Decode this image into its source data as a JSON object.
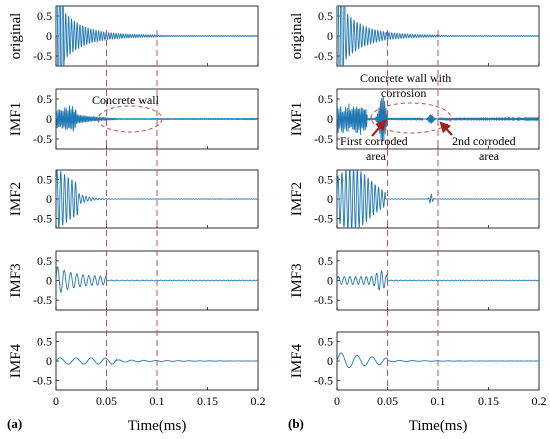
{
  "figure": {
    "xlabel": "Time(ms)",
    "xticks": [
      "0",
      "0.05",
      "0.1",
      "0.15",
      "0.2"
    ],
    "xlim": [
      0,
      0.2
    ],
    "yticks": [
      "0.5",
      "0",
      "-0.5"
    ],
    "ylim": [
      -0.75,
      0.75
    ],
    "signal_color": "#1f77b4",
    "marker_color": "#c0504d",
    "arrow_color": "#a02020",
    "dashed_markers_ms": [
      0.05,
      0.1
    ]
  },
  "panels": [
    {
      "label": "(a)",
      "rows": [
        "original",
        "IMF1",
        "IMF2",
        "IMF3",
        "IMF4"
      ],
      "annotations": [
        "Concrete wall"
      ]
    },
    {
      "label": "(b)",
      "rows": [
        "original",
        "IMF1",
        "IMF2",
        "IMF3",
        "IMF4"
      ],
      "annotations": [
        "Concrete wall with",
        "corrosion",
        "First corroded",
        "area",
        "2nd corroded",
        "area"
      ]
    }
  ],
  "chart_data": {
    "type": "line",
    "xlabel": "Time(ms)",
    "xlim": [
      0,
      0.2
    ],
    "ylim": [
      -0.75,
      0.75
    ],
    "series_note": "",
    "series": [
      {
        "panel": "(a)",
        "row": "original",
        "envelope_peak": 2.0,
        "decay_per_ms": 0.045,
        "freq_cycles_per_ms": 330
      },
      {
        "panel": "(a)",
        "row": "IMF1",
        "envelope_peak": 0.35,
        "decay_per_ms": 0.03,
        "freq_cycles_per_ms": 600
      },
      {
        "panel": "(a)",
        "row": "IMF2",
        "envelope_peak": 0.85,
        "decay_per_ms": 0.022,
        "freq_cycles_per_ms": 260
      },
      {
        "panel": "(a)",
        "row": "IMF3",
        "envelope_peak": 0.3,
        "decay_per_ms": 0.018,
        "freq_cycles_per_ms": 150
      },
      {
        "panel": "(a)",
        "row": "IMF4",
        "envelope_peak": 0.1,
        "decay_per_ms": 0.06,
        "freq_cycles_per_ms": 60
      },
      {
        "panel": "(b)",
        "row": "original",
        "envelope_peak": 2.0,
        "decay_per_ms": 0.05,
        "freq_cycles_per_ms": 300
      },
      {
        "panel": "(b)",
        "row": "IMF1",
        "envelope_peak": 0.45,
        "decay_per_ms": 0.04,
        "freq_cycles_per_ms": 600
      },
      {
        "panel": "(b)",
        "row": "IMF2",
        "envelope_peak": 0.75,
        "decay_per_ms": 0.04,
        "freq_cycles_per_ms": 250
      },
      {
        "panel": "(b)",
        "row": "IMF3",
        "envelope_peak": 0.15,
        "decay_per_ms": 0.04,
        "freq_cycles_per_ms": 170
      },
      {
        "panel": "(b)",
        "row": "IMF4",
        "envelope_peak": 0.2,
        "decay_per_ms": 0.045,
        "freq_cycles_per_ms": 60
      }
    ]
  }
}
